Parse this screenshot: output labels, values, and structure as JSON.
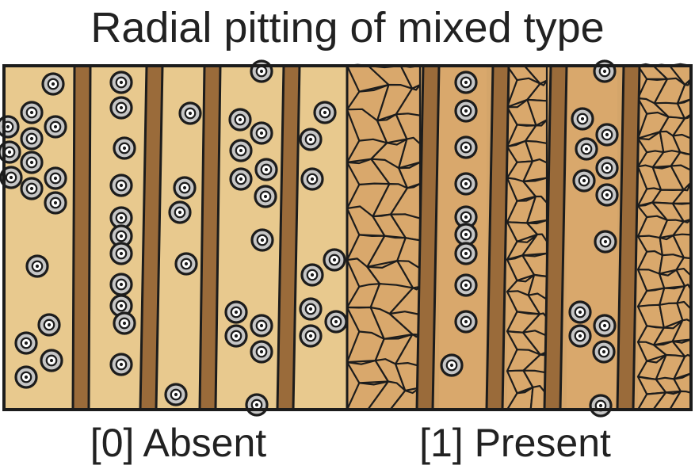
{
  "title": "Radial pitting of mixed type",
  "panels": [
    {
      "label": "[0] Absent"
    },
    {
      "label": "[1] Present"
    }
  ],
  "colors": {
    "outline": "#1c1c1c",
    "cell_light": "#e8c98e",
    "cell_medium": "#d4a56a",
    "ray_tissue": "#d9a86c",
    "wall": "#9a6b3a",
    "pit_fill": "#c6c6c6",
    "pit_ring_fill": "#ffffff"
  }
}
